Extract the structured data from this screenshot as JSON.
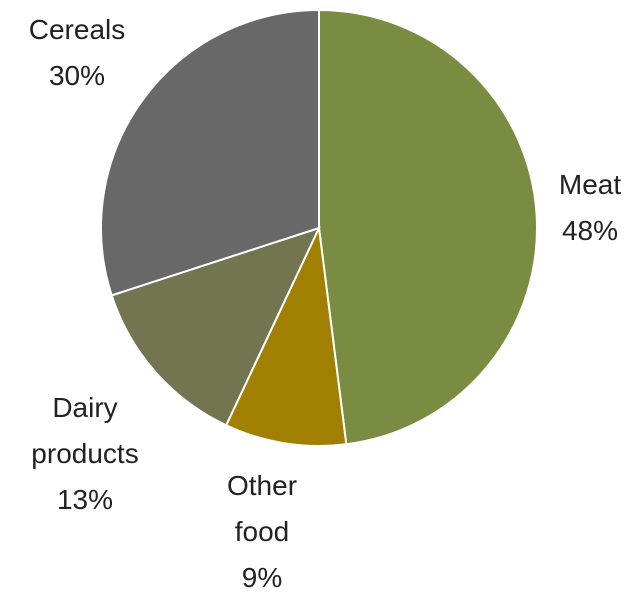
{
  "chart_data": {
    "type": "pie",
    "categories": [
      "Meat",
      "Other food",
      "Dairy products",
      "Cereals"
    ],
    "values": [
      48,
      9,
      13,
      30
    ],
    "value_labels": [
      "48%",
      "9%",
      "13%",
      "30%"
    ],
    "colors": [
      "#7a8c42",
      "#a17f00",
      "#737550",
      "#686868"
    ]
  }
}
